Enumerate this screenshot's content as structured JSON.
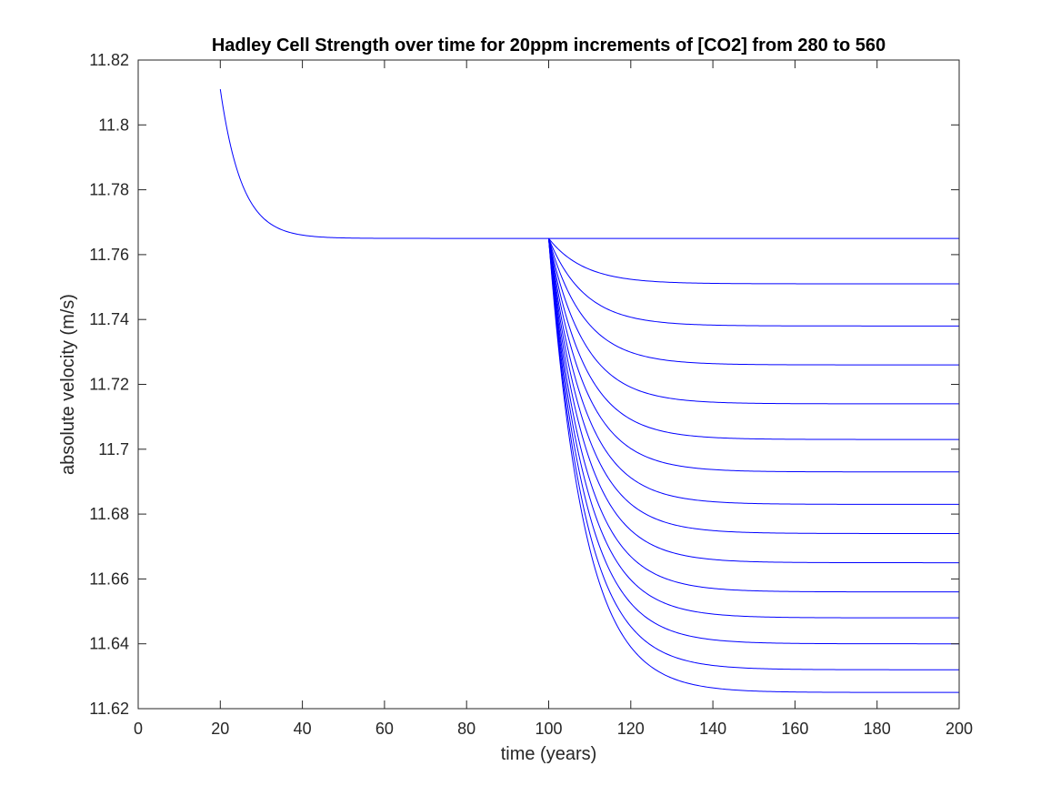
{
  "chart_data": {
    "type": "line",
    "title": "Hadley Cell Strength over time for 20ppm increments of [CO2] from 280 to 560",
    "xlabel": "time (years)",
    "ylabel": "absolute velocity (m/s)",
    "xlim": [
      0,
      200
    ],
    "ylim": [
      11.62,
      11.82
    ],
    "xticks": [
      0,
      20,
      40,
      60,
      80,
      100,
      120,
      140,
      160,
      180,
      200
    ],
    "xtick_labels": [
      "0",
      "20",
      "40",
      "60",
      "80",
      "100",
      "120",
      "140",
      "160",
      "180",
      "200"
    ],
    "yticks": [
      11.62,
      11.64,
      11.66,
      11.68,
      11.7,
      11.72,
      11.74,
      11.76,
      11.78,
      11.8,
      11.82
    ],
    "ytick_labels": [
      "11.62",
      "11.64",
      "11.66",
      "11.68",
      "11.7",
      "11.72",
      "11.74",
      "11.76",
      "11.78",
      "11.8",
      "11.82"
    ],
    "grid": false,
    "box": true,
    "line_color": "#0000ff",
    "spinup": {
      "x_start": 20,
      "y_start": 11.811,
      "x_end": 100,
      "y_end": 11.765
    },
    "series": [
      {
        "co2_ppm": 280,
        "x_start": 100,
        "y_start": 11.765,
        "x_end": 200,
        "y_end": 11.765
      },
      {
        "co2_ppm": 300,
        "x_start": 100,
        "y_start": 11.765,
        "x_end": 200,
        "y_end": 11.751
      },
      {
        "co2_ppm": 320,
        "x_start": 100,
        "y_start": 11.765,
        "x_end": 200,
        "y_end": 11.738
      },
      {
        "co2_ppm": 340,
        "x_start": 100,
        "y_start": 11.765,
        "x_end": 200,
        "y_end": 11.726
      },
      {
        "co2_ppm": 360,
        "x_start": 100,
        "y_start": 11.765,
        "x_end": 200,
        "y_end": 11.714
      },
      {
        "co2_ppm": 380,
        "x_start": 100,
        "y_start": 11.765,
        "x_end": 200,
        "y_end": 11.703
      },
      {
        "co2_ppm": 400,
        "x_start": 100,
        "y_start": 11.765,
        "x_end": 200,
        "y_end": 11.693
      },
      {
        "co2_ppm": 420,
        "x_start": 100,
        "y_start": 11.765,
        "x_end": 200,
        "y_end": 11.683
      },
      {
        "co2_ppm": 440,
        "x_start": 100,
        "y_start": 11.765,
        "x_end": 200,
        "y_end": 11.674
      },
      {
        "co2_ppm": 460,
        "x_start": 100,
        "y_start": 11.765,
        "x_end": 200,
        "y_end": 11.665
      },
      {
        "co2_ppm": 480,
        "x_start": 100,
        "y_start": 11.765,
        "x_end": 200,
        "y_end": 11.656
      },
      {
        "co2_ppm": 500,
        "x_start": 100,
        "y_start": 11.765,
        "x_end": 200,
        "y_end": 11.648
      },
      {
        "co2_ppm": 520,
        "x_start": 100,
        "y_start": 11.765,
        "x_end": 200,
        "y_end": 11.64
      },
      {
        "co2_ppm": 540,
        "x_start": 100,
        "y_start": 11.765,
        "x_end": 200,
        "y_end": 11.632
      },
      {
        "co2_ppm": 560,
        "x_start": 100,
        "y_start": 11.765,
        "x_end": 200,
        "y_end": 11.625
      }
    ]
  }
}
